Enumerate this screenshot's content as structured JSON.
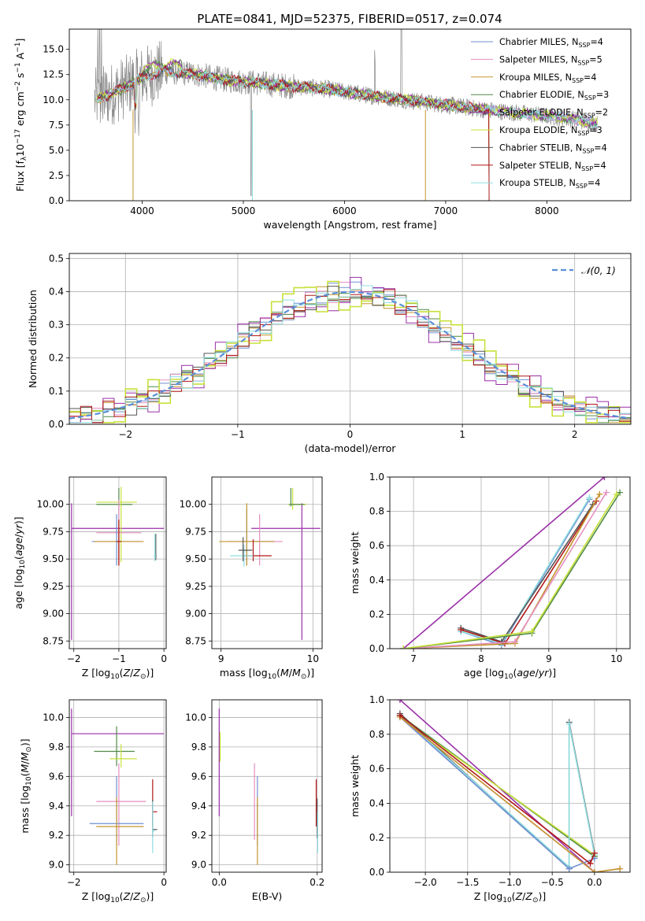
{
  "figure": {
    "title": "PLATE=0841, MJD=52375, FIBERID=0517, z=0.074"
  },
  "colors": {
    "chabrier_miles": "#6f8fd2",
    "salpeter_miles": "#e58fbf",
    "kroupa_miles": "#c4952d",
    "chabrier_elodie": "#4f8a45",
    "salpeter_elodie": "#9a2fa8",
    "kroupa_elodie": "#c8e03a",
    "chabrier_stelib": "#555555",
    "salpeter_stelib": "#b01818",
    "kroupa_stelib": "#8fdde0",
    "data": "#888888",
    "gaussian": "#5a8fd8",
    "orange": "#ea7b35"
  },
  "chart_data": [
    {
      "id": "spectrum",
      "type": "line",
      "title": "PLATE=0841, MJD=52375, FIBERID=0517, z=0.074",
      "xlabel": "wavelength [Angstrom, rest frame]",
      "ylabel": "Flux [f_λ 10^-17 erg cm^-2 s^-1 A^-1]",
      "xlim": [
        3280,
        8830
      ],
      "ylim": [
        0,
        17
      ],
      "xticks": [
        4000,
        5000,
        6000,
        7000,
        8000
      ],
      "yticks": [
        0.0,
        2.5,
        5.0,
        7.5,
        10.0,
        12.5,
        15.0
      ],
      "legend_position": "top-right",
      "legend": [
        {
          "label": "Chabrier MILES, N",
          "sub": "SSP",
          "tail": "=4",
          "color_key": "chabrier_miles"
        },
        {
          "label": "Salpeter MILES, N",
          "sub": "SSP",
          "tail": "=5",
          "color_key": "salpeter_miles"
        },
        {
          "label": "Kroupa MILES, N",
          "sub": "SSP",
          "tail": "=4",
          "color_key": "kroupa_miles"
        },
        {
          "label": "Chabrier ELODIE, N",
          "sub": "SSP",
          "tail": "=3",
          "color_key": "chabrier_elodie"
        },
        {
          "label": "Salpeter ELODIE, N",
          "sub": "SSP",
          "tail": "=2",
          "color_key": "salpeter_elodie"
        },
        {
          "label": "Kroupa ELODIE, N",
          "sub": "SSP",
          "tail": "=3",
          "color_key": "kroupa_elodie"
        },
        {
          "label": "Chabrier STELIB, N",
          "sub": "SSP",
          "tail": "=4",
          "color_key": "chabrier_stelib"
        },
        {
          "label": "Salpeter STELIB, N",
          "sub": "SSP",
          "tail": "=4",
          "color_key": "salpeter_stelib"
        },
        {
          "label": "Kroupa STELIB, N",
          "sub": "SSP",
          "tail": "=4",
          "color_key": "kroupa_stelib"
        }
      ],
      "continuum_points": [
        [
          3530,
          10.0
        ],
        [
          3700,
          10.6
        ],
        [
          3860,
          11.4
        ],
        [
          4000,
          12.2
        ],
        [
          4200,
          12.8
        ],
        [
          4500,
          12.6
        ],
        [
          4800,
          12.0
        ],
        [
          5100,
          11.7
        ],
        [
          5400,
          11.4
        ],
        [
          5800,
          11.1
        ],
        [
          6200,
          10.5
        ],
        [
          6600,
          10.0
        ],
        [
          7000,
          9.5
        ],
        [
          7400,
          9.0
        ],
        [
          7800,
          8.6
        ],
        [
          8200,
          8.2
        ],
        [
          8500,
          7.6
        ]
      ]
    },
    {
      "id": "residuals",
      "type": "line",
      "xlabel": "(data-model)/error",
      "ylabel": "Normed distribution",
      "xlim": [
        -2.5,
        2.5
      ],
      "ylim": [
        0,
        0.515
      ],
      "xticks": [
        -2,
        -1,
        0,
        1,
        2
      ],
      "yticks": [
        0.0,
        0.1,
        0.2,
        0.3,
        0.4,
        0.5
      ],
      "grid": true,
      "legend_position": "top-right",
      "legend_label": "𝒩(0, 1)",
      "gaussian": {
        "mean": 0,
        "sigma": 1
      }
    },
    {
      "id": "z_age",
      "type": "scatter",
      "xlabel": "Z [log10(Z/Z⊙)]",
      "ylabel": "age [log10(age/yr)]",
      "xlim": [
        -2.1,
        0.05
      ],
      "ylim": [
        8.68,
        10.25
      ],
      "xticks": [
        -2,
        -1,
        0
      ],
      "yticks": [
        8.75,
        9.0,
        9.25,
        9.5,
        9.75,
        10.0
      ],
      "grid": true,
      "errorbars": [
        {
          "color_key": "salpeter_elodie",
          "x": -2.05,
          "xerr": [
            0.0,
            2.05
          ],
          "y": 9.78,
          "yerr": [
            1.02,
            0.23
          ]
        },
        {
          "color_key": "chabrier_elodie",
          "x": -1.0,
          "xerr": [
            0.5,
            0.3
          ],
          "y": 10.0,
          "yerr": [
            0.5,
            0.15
          ]
        },
        {
          "color_key": "kroupa_elodie",
          "x": -0.95,
          "xerr": [
            0.55,
            0.35
          ],
          "y": 10.02,
          "yerr": [
            0.55,
            0.14
          ]
        },
        {
          "color_key": "salpeter_miles",
          "x": -1.0,
          "xerr": [
            0.5,
            0.5
          ],
          "y": 9.74,
          "yerr": [
            0.3,
            0.3
          ]
        },
        {
          "color_key": "chabrier_miles",
          "x": -1.05,
          "xerr": [
            0.55,
            0.5
          ],
          "y": 9.66,
          "yerr": [
            0.22,
            0.25
          ]
        },
        {
          "color_key": "kroupa_miles",
          "x": -1.0,
          "xerr": [
            0.55,
            0.55
          ],
          "y": 9.66,
          "yerr": [
            0.22,
            0.2
          ]
        },
        {
          "color_key": "salpeter_stelib",
          "x": -1.0,
          "xerr": [
            0.05,
            0.05
          ],
          "y": 9.66,
          "yerr": [
            0.22,
            0.2
          ]
        },
        {
          "color_key": "chabrier_stelib",
          "x": -0.18,
          "xerr": [
            0.02,
            0.02
          ],
          "y": 9.53,
          "yerr": [
            0.04,
            0.2
          ]
        },
        {
          "color_key": "kroupa_stelib",
          "x": -0.2,
          "xerr": [
            0.03,
            0.03
          ],
          "y": 9.53,
          "yerr": [
            0.05,
            0.2
          ]
        }
      ]
    },
    {
      "id": "mass_age",
      "type": "scatter",
      "xlabel": "mass [log10(M/M⊙)]",
      "ylabel": "",
      "xlim": [
        8.9,
        10.1
      ],
      "ylim": [
        8.68,
        10.25
      ],
      "xticks": [
        9,
        10
      ],
      "yticks": [
        8.75,
        9.0,
        9.25,
        9.5,
        9.75,
        10.0
      ],
      "grid": true,
      "errorbars": [
        {
          "color_key": "salpeter_elodie",
          "x": 9.88,
          "xerr": [
            0.55,
            0.2
          ],
          "y": 9.78,
          "yerr": [
            1.02,
            0.23
          ]
        },
        {
          "color_key": "kroupa_elodie",
          "x": 9.78,
          "xerr": [
            0.05,
            0.15
          ],
          "y": 10.0,
          "yerr": [
            0.05,
            0.15
          ]
        },
        {
          "color_key": "chabrier_elodie",
          "x": 9.76,
          "xerr": [
            0.02,
            0.15
          ],
          "y": 10.0,
          "yerr": [
            0.02,
            0.15
          ]
        },
        {
          "color_key": "salpeter_miles",
          "x": 9.42,
          "xerr": [
            0.2,
            0.25
          ],
          "y": 9.66,
          "yerr": [
            0.22,
            0.25
          ]
        },
        {
          "color_key": "chabrier_miles",
          "x": 9.28,
          "xerr": [
            0.2,
            0.3
          ],
          "y": 9.66,
          "yerr": [
            0.22,
            0.3
          ]
        },
        {
          "color_key": "kroupa_miles",
          "x": 9.28,
          "xerr": [
            0.3,
            0.3
          ],
          "y": 9.66,
          "yerr": [
            0.22,
            0.35
          ]
        },
        {
          "color_key": "salpeter_stelib",
          "x": 9.35,
          "xerr": [
            0.1,
            0.2
          ],
          "y": 9.53,
          "yerr": [
            0.05,
            0.15
          ]
        },
        {
          "color_key": "kroupa_stelib",
          "x": 9.25,
          "xerr": [
            0.15,
            0.1
          ],
          "y": 9.53,
          "yerr": [
            0.1,
            0.1
          ]
        },
        {
          "color_key": "chabrier_stelib",
          "x": 9.24,
          "xerr": [
            0.05,
            0.1
          ],
          "y": 9.58,
          "yerr": [
            0.1,
            0.12
          ]
        }
      ]
    },
    {
      "id": "age_massweight",
      "type": "line",
      "xlabel": "age [log10(age/yr)]",
      "ylabel": "mass weight",
      "xlim": [
        6.65,
        10.2
      ],
      "ylim": [
        0.0,
        1.0
      ],
      "xticks": [
        7,
        8,
        9,
        10
      ],
      "yticks": [
        0.0,
        0.2,
        0.4,
        0.6,
        0.8,
        1.0
      ],
      "grid": true,
      "series": [
        {
          "color_key": "salpeter_elodie",
          "x": [
            6.85,
            9.82
          ],
          "y": [
            0.0,
            1.0
          ]
        },
        {
          "color_key": "chabrier_miles",
          "x": [
            7.7,
            8.3,
            9.6
          ],
          "y": [
            0.1,
            0.02,
            0.87
          ]
        },
        {
          "color_key": "kroupa_stelib",
          "x": [
            7.7,
            8.3,
            9.6
          ],
          "y": [
            0.1,
            0.03,
            0.88
          ]
        },
        {
          "color_key": "chabrier_stelib",
          "x": [
            7.7,
            8.3,
            9.65
          ],
          "y": [
            0.12,
            0.04,
            0.84
          ]
        },
        {
          "color_key": "salpeter_stelib",
          "x": [
            7.7,
            8.35,
            9.7
          ],
          "y": [
            0.11,
            0.03,
            0.86
          ]
        },
        {
          "color_key": "kroupa_miles",
          "x": [
            6.85,
            8.5,
            9.75
          ],
          "y": [
            0.0,
            0.03,
            0.9
          ]
        },
        {
          "color_key": "salpeter_miles",
          "x": [
            6.85,
            8.5,
            9.85
          ],
          "y": [
            0.0,
            0.04,
            0.91
          ]
        },
        {
          "color_key": "chabrier_elodie",
          "x": [
            6.85,
            8.75,
            10.05
          ],
          "y": [
            0.0,
            0.09,
            0.91
          ]
        },
        {
          "color_key": "kroupa_elodie",
          "x": [
            6.85,
            8.75,
            10.0
          ],
          "y": [
            0.0,
            0.1,
            0.9
          ]
        }
      ]
    },
    {
      "id": "z_mass",
      "type": "scatter",
      "xlabel": "Z [log10(Z/Z⊙)]",
      "ylabel": "mass [log10(M/M⊙)]",
      "xlim": [
        -2.1,
        0.05
      ],
      "ylim": [
        8.95,
        10.12
      ],
      "xticks": [
        -2,
        0
      ],
      "yticks": [
        9.0,
        9.2,
        9.4,
        9.6,
        9.8,
        10.0
      ],
      "grid": true,
      "errorbars": [
        {
          "color_key": "salpeter_elodie",
          "x": -2.05,
          "xerr": [
            0.0,
            2.05
          ],
          "y": 9.89,
          "yerr": [
            0.56,
            0.17
          ]
        },
        {
          "color_key": "chabrier_elodie",
          "x": -1.05,
          "xerr": [
            0.5,
            0.4
          ],
          "y": 9.77,
          "yerr": [
            0.1,
            0.17
          ]
        },
        {
          "color_key": "kroupa_elodie",
          "x": -0.95,
          "xerr": [
            0.25,
            0.35
          ],
          "y": 9.72,
          "yerr": [
            0.06,
            0.1
          ]
        },
        {
          "color_key": "salpeter_miles",
          "x": -1.0,
          "xerr": [
            0.5,
            0.6
          ],
          "y": 9.43,
          "yerr": [
            0.3,
            0.26
          ]
        },
        {
          "color_key": "chabrier_miles",
          "x": -1.05,
          "xerr": [
            0.6,
            0.6
          ],
          "y": 9.28,
          "yerr": [
            0.15,
            0.32
          ]
        },
        {
          "color_key": "kroupa_miles",
          "x": -1.05,
          "xerr": [
            0.45,
            0.6
          ],
          "y": 9.26,
          "yerr": [
            0.26,
            0.2
          ]
        },
        {
          "color_key": "salpeter_stelib",
          "x": -0.25,
          "xerr": [
            0.0,
            0.1
          ],
          "y": 9.36,
          "yerr": [
            0.1,
            0.22
          ]
        },
        {
          "color_key": "chabrier_stelib",
          "x": -0.25,
          "xerr": [
            0.0,
            0.1
          ],
          "y": 9.24,
          "yerr": [
            0.05,
            0.2
          ]
        },
        {
          "color_key": "kroupa_stelib",
          "x": -0.25,
          "xerr": [
            0.0,
            0.05
          ],
          "y": 9.23,
          "yerr": [
            0.15,
            0.2
          ]
        }
      ]
    },
    {
      "id": "ebv_mass",
      "type": "scatter",
      "xlabel": "E(B-V)",
      "ylabel": "",
      "xlim": [
        -0.015,
        0.21
      ],
      "ylim": [
        8.95,
        10.12
      ],
      "xticks": [
        0.0,
        0.2
      ],
      "yticks": [
        9.0,
        9.2,
        9.4,
        9.6,
        9.8,
        10.0
      ],
      "grid": true,
      "errorbars": [
        {
          "color_key": "salpeter_elodie",
          "x": 0.0,
          "xerr": [
            0,
            0
          ],
          "y": 9.89,
          "yerr": [
            0.56,
            0.17
          ]
        },
        {
          "color_key": "kroupa_elodie",
          "x": 0.002,
          "xerr": [
            0,
            0
          ],
          "y": 9.8,
          "yerr": [
            0.1,
            0.1
          ]
        },
        {
          "color_key": "salpeter_miles",
          "x": 0.072,
          "xerr": [
            0,
            0
          ],
          "y": 9.43,
          "yerr": [
            0.26,
            0.26
          ]
        },
        {
          "color_key": "chabrier_miles",
          "x": 0.078,
          "xerr": [
            0,
            0
          ],
          "y": 9.28,
          "yerr": [
            0.15,
            0.32
          ]
        },
        {
          "color_key": "kroupa_miles",
          "x": 0.078,
          "xerr": [
            0,
            0
          ],
          "y": 9.26,
          "yerr": [
            0.26,
            0.2
          ]
        },
        {
          "color_key": "salpeter_stelib",
          "x": 0.198,
          "xerr": [
            0,
            0
          ],
          "y": 9.36,
          "yerr": [
            0.1,
            0.22
          ]
        },
        {
          "color_key": "chabrier_stelib",
          "x": 0.2,
          "xerr": [
            0,
            0
          ],
          "y": 9.28,
          "yerr": [
            0.1,
            0.17
          ]
        },
        {
          "color_key": "kroupa_stelib",
          "x": 0.201,
          "xerr": [
            0,
            0
          ],
          "y": 9.2,
          "yerr": [
            0.12,
            0.16
          ]
        }
      ]
    },
    {
      "id": "z_massweight",
      "type": "line",
      "xlabel": "Z [log10(Z/Z⊙)]",
      "ylabel": "mass weight",
      "xlim": [
        -2.42,
        0.42
      ],
      "ylim": [
        0.0,
        1.0
      ],
      "xticks": [
        -2.0,
        -1.5,
        -1.0,
        -0.5,
        0.0
      ],
      "yticks": [
        0.0,
        0.2,
        0.4,
        0.6,
        0.8,
        1.0
      ],
      "grid": true,
      "series": [
        {
          "color_key": "salpeter_elodie",
          "x": [
            -2.3,
            0.0
          ],
          "y": [
            1.0,
            0.0
          ]
        },
        {
          "color_key": "chabrier_elodie",
          "x": [
            -2.3,
            0.0
          ],
          "y": [
            0.91,
            0.09
          ]
        },
        {
          "color_key": "kroupa_elodie",
          "x": [
            -2.3,
            0.0
          ],
          "y": [
            0.9,
            0.1
          ]
        },
        {
          "color_key": "chabrier_stelib",
          "x": [
            -2.3,
            -0.3,
            -0.3,
            0.0
          ],
          "y": [
            0.92,
            0.02,
            0.87,
            0.11
          ]
        },
        {
          "color_key": "kroupa_stelib",
          "x": [
            -2.3,
            -0.3,
            -0.3,
            0.0
          ],
          "y": [
            0.91,
            0.03,
            0.86,
            0.1
          ]
        },
        {
          "color_key": "chabrier_miles",
          "x": [
            -2.3,
            -0.3,
            0.0
          ],
          "y": [
            0.9,
            0.02,
            0.08
          ]
        },
        {
          "color_key": "salpeter_miles",
          "x": [
            -2.3,
            0.0,
            0.3
          ],
          "y": [
            0.9,
            0.0,
            0.02
          ]
        },
        {
          "color_key": "kroupa_miles",
          "x": [
            -2.3,
            0.0,
            0.3
          ],
          "y": [
            0.9,
            0.0,
            0.02
          ]
        },
        {
          "color_key": "salpeter_stelib",
          "x": [
            -2.3,
            -0.05,
            0.0
          ],
          "y": [
            0.91,
            0.05,
            0.11
          ]
        }
      ]
    }
  ]
}
